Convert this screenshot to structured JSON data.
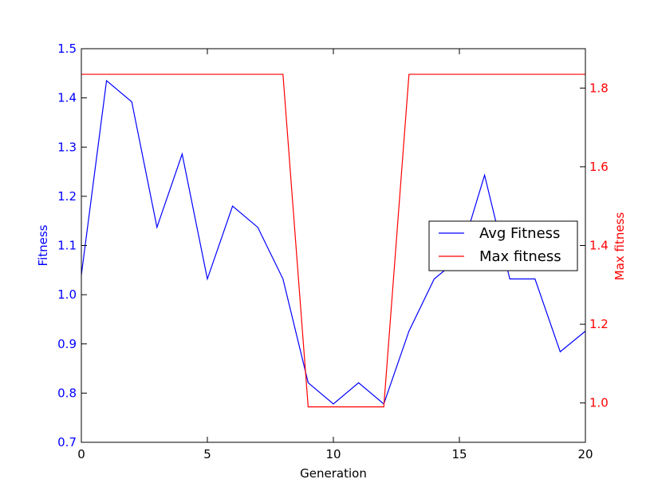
{
  "chart_data": {
    "type": "line",
    "xlabel": "Generation",
    "x": [
      0,
      1,
      2,
      3,
      4,
      5,
      6,
      7,
      8,
      9,
      10,
      11,
      12,
      13,
      14,
      15,
      16,
      17,
      18,
      19,
      20
    ],
    "xlim": [
      0,
      20
    ],
    "xticks": [
      "0",
      "5",
      "10",
      "15",
      "20"
    ],
    "left_axis": {
      "label": "Fitness",
      "ylim": [
        0.7,
        1.5
      ],
      "ticks": [
        "0.7",
        "0.8",
        "0.9",
        "1.0",
        "1.1",
        "1.2",
        "1.3",
        "1.4",
        "1.5"
      ],
      "color": "#0000ff"
    },
    "right_axis": {
      "label": "Max fitness",
      "ylim": [
        0.9,
        1.9
      ],
      "ticks": [
        "1.0",
        "1.2",
        "1.4",
        "1.6",
        "1.8"
      ],
      "color": "#ff0000"
    },
    "series": [
      {
        "name": "Avg Fitness",
        "axis": "left",
        "color": "#0000ff",
        "values": [
          1.04,
          1.435,
          1.392,
          1.137,
          1.286,
          1.032,
          1.18,
          1.137,
          1.032,
          0.821,
          0.778,
          0.821,
          0.778,
          0.926,
          1.032,
          1.074,
          1.243,
          1.032,
          1.032,
          0.884,
          0.926
        ]
      },
      {
        "name": "Max fitness",
        "axis": "right",
        "color": "#ff0000",
        "values": [
          1.835,
          1.835,
          1.835,
          1.835,
          1.835,
          1.835,
          1.835,
          1.835,
          1.835,
          0.99,
          0.99,
          0.99,
          0.99,
          1.835,
          1.835,
          1.835,
          1.835,
          1.835,
          1.835,
          1.835,
          1.835
        ]
      }
    ],
    "legend": {
      "position": "center-right",
      "entries": [
        "Avg Fitness",
        "Max fitness"
      ]
    },
    "grid": false
  }
}
